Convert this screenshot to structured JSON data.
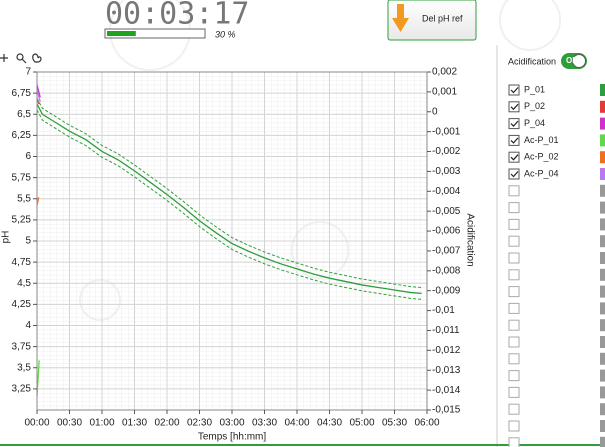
{
  "timer": "00:03:17",
  "progress": {
    "value": 30,
    "label": "30 %"
  },
  "button": "Del pH ref",
  "panel": {
    "toggle_label": "Acidification",
    "toggle_state": "ON"
  },
  "chart_data": {
    "type": "line",
    "xlabel": "Temps [hh:mm]",
    "ylabel": "pH",
    "y2label": "Acidification",
    "xlim": [
      0,
      360
    ],
    "xticks": [
      {
        "value": 0,
        "label": "00:00"
      },
      {
        "value": 30,
        "label": "00:30"
      },
      {
        "value": 60,
        "label": "01:00"
      },
      {
        "value": 90,
        "label": "01:30"
      },
      {
        "value": 120,
        "label": "02:00"
      },
      {
        "value": 150,
        "label": "02:30"
      },
      {
        "value": 180,
        "label": "03:00"
      },
      {
        "value": 210,
        "label": "03:30"
      },
      {
        "value": 240,
        "label": "04:00"
      },
      {
        "value": 270,
        "label": "04:30"
      },
      {
        "value": 300,
        "label": "05:00"
      },
      {
        "value": 330,
        "label": "05:30"
      },
      {
        "value": 360,
        "label": "06:00"
      }
    ],
    "ylim": [
      3,
      7
    ],
    "yticks": [
      {
        "value": 3.25,
        "label": "3,25"
      },
      {
        "value": 3.5,
        "label": "3,5"
      },
      {
        "value": 3.75,
        "label": "3,75"
      },
      4,
      {
        "value": 4.25,
        "label": "4,25"
      },
      {
        "value": 4.5,
        "label": "4,5"
      },
      {
        "value": 4.75,
        "label": "4,75"
      },
      5,
      {
        "value": 5.25,
        "label": "5,25"
      },
      {
        "value": 5.5,
        "label": "5,5"
      },
      {
        "value": 5.75,
        "label": "5,75"
      },
      6,
      {
        "value": 6.25,
        "label": "6,25"
      },
      {
        "value": 6.5,
        "label": "6,5"
      },
      {
        "value": 6.75,
        "label": "6,75"
      },
      7
    ],
    "y2lim": [
      -0.015,
      0.002
    ],
    "y2ticks": [
      {
        "value": 0.002,
        "label": "0,002"
      },
      {
        "value": 0.001,
        "label": "0,001"
      },
      0,
      {
        "value": -0.001,
        "label": "-0,001"
      },
      {
        "value": -0.002,
        "label": "-0,002"
      },
      {
        "value": -0.003,
        "label": "-0,003"
      },
      {
        "value": -0.004,
        "label": "-0,004"
      },
      {
        "value": -0.005,
        "label": "-0,005"
      },
      {
        "value": -0.006,
        "label": "-0,006"
      },
      {
        "value": -0.007,
        "label": "-0,007"
      },
      {
        "value": -0.008,
        "label": "-0,008"
      },
      {
        "value": -0.009,
        "label": "-0,009"
      },
      {
        "value": -0.01,
        "label": "-0,01"
      },
      {
        "value": -0.011,
        "label": "-0,011"
      },
      {
        "value": -0.012,
        "label": "-0,012"
      },
      {
        "value": -0.013,
        "label": "-0,013"
      },
      {
        "value": -0.014,
        "label": "-0,014"
      },
      {
        "value": -0.015,
        "label": "-0,015"
      }
    ],
    "grid": true,
    "series": [
      {
        "name": "P_01",
        "color": "#2e9e3a",
        "x": [
          0,
          5,
          15,
          30,
          45,
          60,
          75,
          90,
          105,
          120,
          135,
          150,
          165,
          180,
          195,
          210,
          225,
          240,
          255,
          270,
          285,
          300,
          315,
          330,
          345,
          355
        ],
        "values": [
          6.62,
          6.5,
          6.42,
          6.3,
          6.2,
          6.06,
          5.96,
          5.83,
          5.69,
          5.55,
          5.4,
          5.24,
          5.1,
          4.97,
          4.88,
          4.8,
          4.73,
          4.67,
          4.61,
          4.56,
          4.52,
          4.48,
          4.45,
          4.42,
          4.39,
          4.38
        ]
      },
      {
        "name": "P_02",
        "color": "#e53935",
        "x": [
          0,
          2
        ],
        "values": [
          6.68,
          6.62
        ]
      },
      {
        "name": "P_04",
        "color": "#cc33cc",
        "x": [
          0,
          3
        ],
        "values": [
          6.85,
          6.7
        ]
      },
      {
        "name": "Ac-P_01",
        "color": "#5fd84a",
        "axis": "y2",
        "x": [
          0,
          2
        ],
        "values": [
          -0.0143,
          -0.0125
        ]
      },
      {
        "name": "Ac-P_02",
        "color": "#f07020",
        "axis": "y2",
        "x": [
          0,
          1.5
        ],
        "values": [
          -0.0047,
          -0.0043
        ]
      },
      {
        "name": "Ac-P_04",
        "color": "#b97aee",
        "axis": "y2",
        "x": [
          0,
          3
        ],
        "values": [
          0.0011,
          0.0005
        ]
      },
      {
        "color": "#2e9e3a",
        "dashed": true,
        "x": [
          0,
          5,
          15,
          30,
          45,
          60,
          75,
          90,
          105,
          120,
          135,
          150,
          165,
          180,
          195,
          210,
          225,
          240,
          255,
          270,
          285,
          300,
          315,
          330,
          345,
          355
        ],
        "values": [
          6.69,
          6.57,
          6.49,
          6.37,
          6.27,
          6.13,
          6.03,
          5.9,
          5.76,
          5.62,
          5.47,
          5.31,
          5.17,
          5.04,
          4.95,
          4.87,
          4.8,
          4.74,
          4.68,
          4.63,
          4.59,
          4.55,
          4.52,
          4.49,
          4.46,
          4.45
        ]
      },
      {
        "color": "#2e9e3a",
        "dashed": true,
        "x": [
          0,
          5,
          15,
          30,
          45,
          60,
          75,
          90,
          105,
          120,
          135,
          150,
          165,
          180,
          195,
          210,
          225,
          240,
          255,
          270,
          285,
          300,
          315,
          330,
          345,
          355
        ],
        "values": [
          6.55,
          6.43,
          6.35,
          6.23,
          6.13,
          5.99,
          5.89,
          5.76,
          5.62,
          5.48,
          5.33,
          5.17,
          5.03,
          4.9,
          4.81,
          4.73,
          4.66,
          4.6,
          4.54,
          4.49,
          4.45,
          4.41,
          4.38,
          4.35,
          4.32,
          4.31
        ]
      }
    ]
  }
}
